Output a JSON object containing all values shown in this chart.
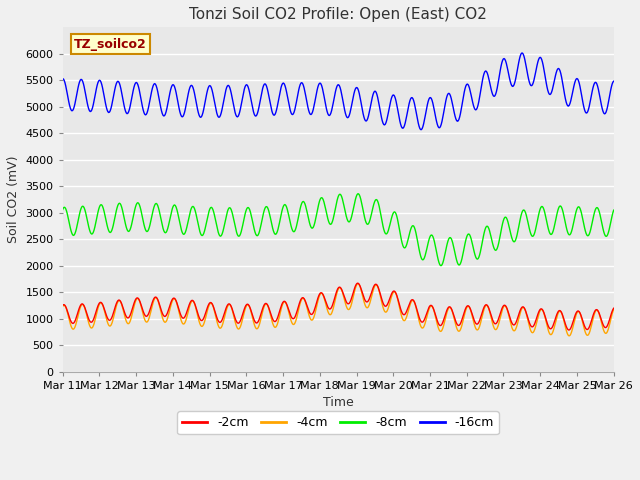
{
  "title": "Tonzi Soil CO2 Profile: Open (East) CO2",
  "xlabel": "Time",
  "ylabel": "Soil CO2 (mV)",
  "label_box_text": "TZ_soilco2",
  "ylim": [
    0,
    6500
  ],
  "yticks": [
    0,
    500,
    1000,
    1500,
    2000,
    2500,
    3000,
    3500,
    4000,
    4500,
    5000,
    5500,
    6000
  ],
  "xtick_labels": [
    "Mar 11",
    "Mar 12",
    "Mar 13",
    "Mar 14",
    "Mar 15",
    "Mar 16",
    "Mar 17",
    "Mar 18",
    "Mar 19",
    "Mar 20",
    "Mar 21",
    "Mar 22",
    "Mar 23",
    "Mar 24",
    "Mar 25",
    "Mar 26"
  ],
  "colors": {
    "-2cm": "#ff0000",
    "-4cm": "#ffa500",
    "-8cm": "#00ee00",
    "-16cm": "#0000ff"
  },
  "legend_labels": [
    "-2cm",
    "-4cm",
    "-8cm",
    "-16cm"
  ],
  "plot_bg": "#e8e8e8",
  "fig_bg": "#f0f0f0",
  "grid_color": "#ffffff",
  "title_fontsize": 11,
  "axis_label_fontsize": 9,
  "tick_fontsize": 8,
  "legend_box_color": "#ffffcc",
  "legend_box_edge": "#cc8800",
  "label_text_color": "#990000"
}
